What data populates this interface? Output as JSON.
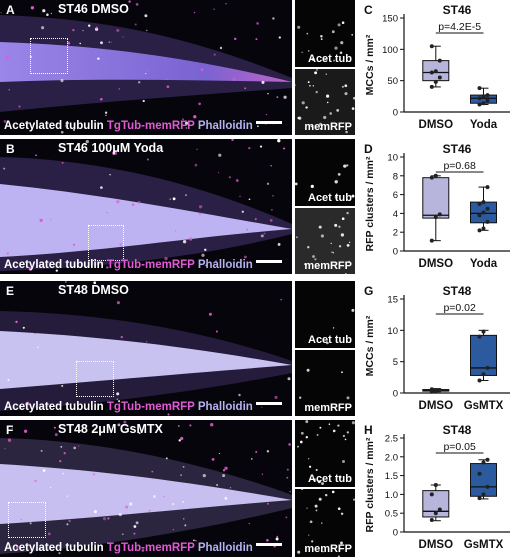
{
  "micro_panels": [
    {
      "letter": "A",
      "title": "ST46 DMSO",
      "channels": [
        "Acetylated tubulin",
        "TgTub-memRFP",
        "Phalloidin"
      ]
    },
    {
      "letter": "B",
      "title": "ST46 100μM Yoda",
      "channels": [
        "Acetylated tubulin",
        "TgTub-memRFP",
        "Phalloidin"
      ]
    },
    {
      "letter": "E",
      "title": "ST48 DMSO",
      "channels": [
        "Acetylated tubulin",
        "TgTub-memRFP",
        "Phalloidin"
      ]
    },
    {
      "letter": "F",
      "title": "ST48 2μM GsMTX",
      "channels": [
        "Acetylated tubulin",
        "TgTub-memRFP",
        "Phalloidin"
      ]
    }
  ],
  "inset_labels": [
    "Acet tub",
    "memRFP"
  ],
  "colors": {
    "acetylated_tubulin": "#ffffff",
    "tgtub_memrfp": "#e05bd3",
    "phalloidin": "#b5b2f0",
    "dmso_box": "#b7b5dc",
    "treatment_box": "#2c5a9e"
  },
  "chart_data": [
    {
      "panel": "C",
      "type": "box",
      "title": "ST46",
      "annotation": "p=4.2E-5",
      "ylabel": "MCCs / mm²",
      "ylim": [
        0,
        150
      ],
      "yticks": [
        0,
        50,
        100,
        150
      ],
      "categories": [
        "DMSO",
        "Yoda"
      ],
      "boxes": [
        {
          "min": 40,
          "q1": 50,
          "median": 63,
          "q3": 82,
          "max": 105,
          "points": [
            40,
            48,
            55,
            63,
            65,
            82,
            105
          ],
          "color": "#b7b5dc"
        },
        {
          "min": 12,
          "q1": 14,
          "median": 22,
          "q3": 27,
          "max": 38,
          "points": [
            12,
            14,
            18,
            22,
            25,
            27,
            38
          ],
          "color": "#2c5a9e"
        }
      ]
    },
    {
      "panel": "D",
      "type": "box",
      "title": "ST46",
      "annotation": "p=0.68",
      "ylabel": "RFP clusters / mm²",
      "ylim": [
        0,
        10
      ],
      "yticks": [
        0,
        2,
        4,
        6,
        8,
        10
      ],
      "categories": [
        "DMSO",
        "Yoda"
      ],
      "boxes": [
        {
          "min": 1.1,
          "q1": 3.5,
          "median": 3.8,
          "q3": 7.8,
          "max": 8.0,
          "points": [
            1.1,
            3.6,
            3.9,
            7.8,
            8.0
          ],
          "color": "#b7b5dc"
        },
        {
          "min": 2.2,
          "q1": 3.0,
          "median": 4.0,
          "q3": 5.2,
          "max": 6.8,
          "points": [
            2.2,
            2.4,
            3.1,
            3.8,
            4.1,
            4.5,
            5.0,
            5.2,
            6.8
          ],
          "color": "#2c5a9e"
        }
      ]
    },
    {
      "panel": "G",
      "type": "box",
      "title": "ST48",
      "annotation": "p=0.02",
      "ylabel": "MCCs / mm²",
      "ylim": [
        0,
        15
      ],
      "yticks": [
        0,
        5,
        10,
        15
      ],
      "categories": [
        "DMSO",
        "GsMTX"
      ],
      "boxes": [
        {
          "min": 0.2,
          "q1": 0.3,
          "median": 0.4,
          "q3": 0.55,
          "max": 0.7,
          "points": [
            0.2,
            0.3,
            0.45,
            0.6
          ],
          "color": "#b7b5dc"
        },
        {
          "min": 2.0,
          "q1": 2.8,
          "median": 4.0,
          "q3": 9.2,
          "max": 10.0,
          "points": [
            2.0,
            3.0,
            4.0,
            9.0,
            9.8
          ],
          "color": "#2c5a9e"
        }
      ]
    },
    {
      "panel": "H",
      "type": "box",
      "title": "ST48",
      "annotation": "p=0.05",
      "ylabel": "RFP clusters / mm²",
      "ylim": [
        0,
        2.5
      ],
      "yticks": [
        0,
        0.5,
        1.0,
        1.5,
        2.0,
        2.5
      ],
      "categories": [
        "DMSO",
        "GsMTX"
      ],
      "boxes": [
        {
          "min": 0.3,
          "q1": 0.4,
          "median": 0.55,
          "q3": 1.1,
          "max": 1.25,
          "points": [
            0.32,
            0.5,
            0.6,
            1.0,
            1.25
          ],
          "color": "#b7b5dc"
        },
        {
          "min": 0.88,
          "q1": 0.95,
          "median": 1.2,
          "q3": 1.82,
          "max": 1.92,
          "points": [
            0.9,
            1.0,
            1.2,
            1.55,
            1.85,
            1.92
          ],
          "color": "#2c5a9e"
        }
      ]
    }
  ]
}
